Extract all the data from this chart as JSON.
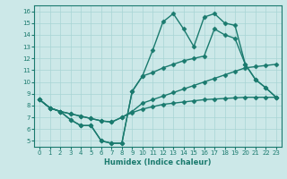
{
  "xlabel": "Humidex (Indice chaleur)",
  "xlim": [
    -0.5,
    23.5
  ],
  "ylim": [
    4.5,
    16.5
  ],
  "xticks": [
    0,
    1,
    2,
    3,
    4,
    5,
    6,
    7,
    8,
    9,
    10,
    11,
    12,
    13,
    14,
    15,
    16,
    17,
    18,
    19,
    20,
    21,
    22,
    23
  ],
  "yticks": [
    5,
    6,
    7,
    8,
    9,
    10,
    11,
    12,
    13,
    14,
    15,
    16
  ],
  "bg_color": "#cce8e8",
  "line_color": "#1a7a6e",
  "line_width": 1.0,
  "marker": "D",
  "marker_size": 2.5,
  "series": [
    {
      "x": [
        0,
        1,
        2,
        3,
        4,
        5,
        6,
        7,
        8,
        9,
        10,
        11,
        12,
        13,
        14,
        15,
        16,
        17,
        18,
        19,
        20,
        21,
        22,
        23
      ],
      "y": [
        8.5,
        7.8,
        7.5,
        6.8,
        6.3,
        6.3,
        5.0,
        4.8,
        4.8,
        9.2,
        10.5,
        12.7,
        15.1,
        15.8,
        14.5,
        13.0,
        15.5,
        15.8,
        15.0,
        14.8,
        11.5,
        10.2,
        9.5,
        8.7
      ]
    },
    {
      "x": [
        0,
        1,
        2,
        3,
        4,
        5,
        6,
        7,
        8,
        9,
        10,
        11,
        12,
        13,
        14,
        15,
        16,
        17,
        18,
        19,
        20,
        21,
        22,
        23
      ],
      "y": [
        8.5,
        7.8,
        7.5,
        6.8,
        6.3,
        6.3,
        5.0,
        4.8,
        4.8,
        9.2,
        10.5,
        10.8,
        11.2,
        11.5,
        11.8,
        12.0,
        12.2,
        14.5,
        14.0,
        13.7,
        11.5,
        10.2,
        9.5,
        8.7
      ]
    },
    {
      "x": [
        0,
        1,
        2,
        3,
        4,
        5,
        6,
        7,
        8,
        9,
        10,
        11,
        12,
        13,
        14,
        15,
        16,
        17,
        18,
        19,
        20,
        21,
        22,
        23
      ],
      "y": [
        8.5,
        7.8,
        7.5,
        7.3,
        7.1,
        6.9,
        6.7,
        6.6,
        7.0,
        7.5,
        8.2,
        8.5,
        8.8,
        9.1,
        9.4,
        9.7,
        10.0,
        10.3,
        10.6,
        10.9,
        11.2,
        11.3,
        11.4,
        11.5
      ]
    },
    {
      "x": [
        0,
        1,
        2,
        3,
        4,
        5,
        6,
        7,
        8,
        9,
        10,
        11,
        12,
        13,
        14,
        15,
        16,
        17,
        18,
        19,
        20,
        21,
        22,
        23
      ],
      "y": [
        8.5,
        7.8,
        7.5,
        7.3,
        7.1,
        6.9,
        6.7,
        6.6,
        7.0,
        7.4,
        7.7,
        7.9,
        8.1,
        8.2,
        8.3,
        8.4,
        8.5,
        8.55,
        8.6,
        8.65,
        8.7,
        8.7,
        8.7,
        8.7
      ]
    }
  ]
}
